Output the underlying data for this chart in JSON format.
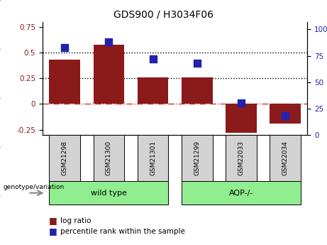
{
  "title": "GDS900 / H3034F06",
  "categories": [
    "GSM21298",
    "GSM21300",
    "GSM21301",
    "GSM21299",
    "GSM22033",
    "GSM22034"
  ],
  "log_ratios": [
    0.43,
    0.58,
    0.26,
    0.26,
    -0.28,
    -0.19
  ],
  "percentile_ranks": [
    83,
    88,
    72,
    68,
    30,
    18
  ],
  "bar_color": "#8B1A1A",
  "dot_color": "#2222AA",
  "left_ylim": [
    -0.3,
    0.8
  ],
  "right_ylim": [
    0,
    107
  ],
  "left_yticks": [
    -0.25,
    0,
    0.25,
    0.5,
    0.75
  ],
  "right_yticks": [
    0,
    25,
    50,
    75,
    100
  ],
  "right_yticklabels": [
    "0",
    "25",
    "50",
    "75",
    "100%"
  ],
  "hlines": [
    0.5,
    0.25
  ],
  "hline_zero_color": "#CC3333",
  "hline_color": "black",
  "wild_type_indices": [
    0,
    1,
    2
  ],
  "aqp_indices": [
    3,
    4,
    5
  ],
  "wild_type_label": "wild type",
  "aqp_label": "AQP-/-",
  "genotype_label": "genotype/variation",
  "group_bg_color": "#90EE90",
  "sample_bg_color": "#D3D3D3",
  "legend_log_ratio": "log ratio",
  "legend_percentile": "percentile rank within the sample",
  "bar_width": 0.7
}
